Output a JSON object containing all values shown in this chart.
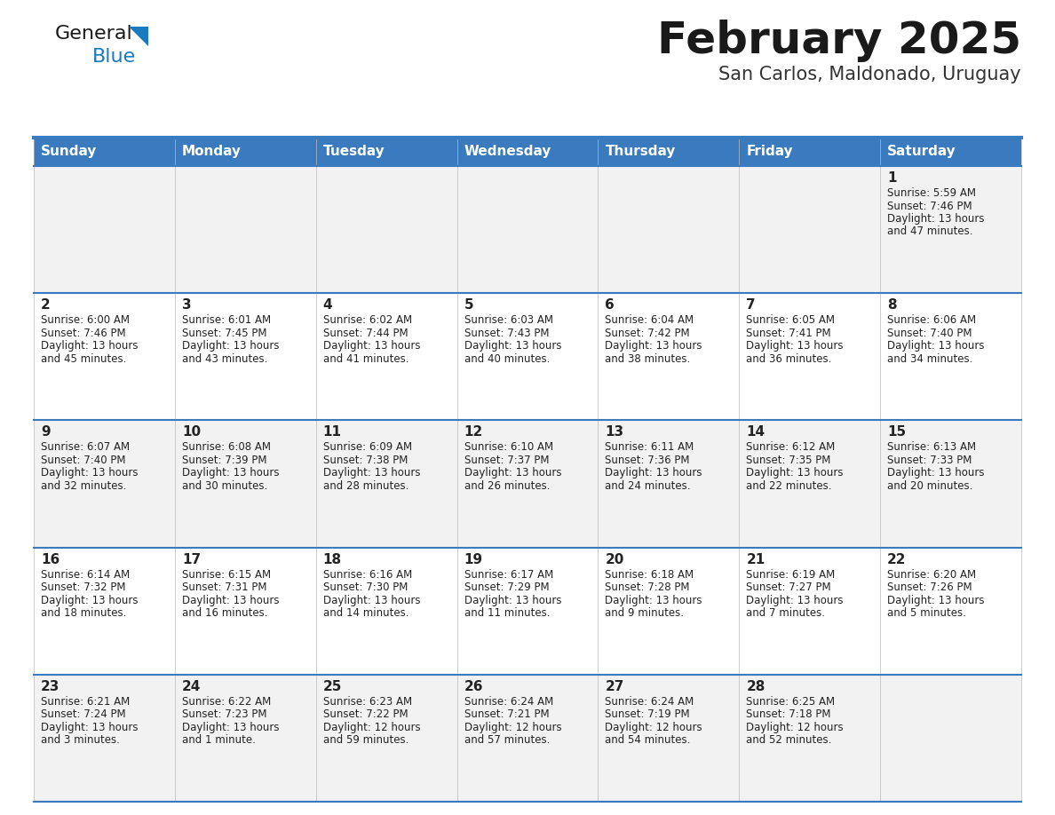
{
  "title": "February 2025",
  "subtitle": "San Carlos, Maldonado, Uruguay",
  "header_bg": "#3a7abf",
  "header_text": "#ffffff",
  "row_bg_even": "#f2f2f2",
  "row_bg_odd": "#ffffff",
  "day_names": [
    "Sunday",
    "Monday",
    "Tuesday",
    "Wednesday",
    "Thursday",
    "Friday",
    "Saturday"
  ],
  "days": [
    {
      "day": 1,
      "col": 6,
      "row": 0,
      "sunrise": "5:59 AM",
      "sunset": "7:46 PM",
      "daylight_l1": "Daylight: 13 hours",
      "daylight_l2": "and 47 minutes."
    },
    {
      "day": 2,
      "col": 0,
      "row": 1,
      "sunrise": "6:00 AM",
      "sunset": "7:46 PM",
      "daylight_l1": "Daylight: 13 hours",
      "daylight_l2": "and 45 minutes."
    },
    {
      "day": 3,
      "col": 1,
      "row": 1,
      "sunrise": "6:01 AM",
      "sunset": "7:45 PM",
      "daylight_l1": "Daylight: 13 hours",
      "daylight_l2": "and 43 minutes."
    },
    {
      "day": 4,
      "col": 2,
      "row": 1,
      "sunrise": "6:02 AM",
      "sunset": "7:44 PM",
      "daylight_l1": "Daylight: 13 hours",
      "daylight_l2": "and 41 minutes."
    },
    {
      "day": 5,
      "col": 3,
      "row": 1,
      "sunrise": "6:03 AM",
      "sunset": "7:43 PM",
      "daylight_l1": "Daylight: 13 hours",
      "daylight_l2": "and 40 minutes."
    },
    {
      "day": 6,
      "col": 4,
      "row": 1,
      "sunrise": "6:04 AM",
      "sunset": "7:42 PM",
      "daylight_l1": "Daylight: 13 hours",
      "daylight_l2": "and 38 minutes."
    },
    {
      "day": 7,
      "col": 5,
      "row": 1,
      "sunrise": "6:05 AM",
      "sunset": "7:41 PM",
      "daylight_l1": "Daylight: 13 hours",
      "daylight_l2": "and 36 minutes."
    },
    {
      "day": 8,
      "col": 6,
      "row": 1,
      "sunrise": "6:06 AM",
      "sunset": "7:40 PM",
      "daylight_l1": "Daylight: 13 hours",
      "daylight_l2": "and 34 minutes."
    },
    {
      "day": 9,
      "col": 0,
      "row": 2,
      "sunrise": "6:07 AM",
      "sunset": "7:40 PM",
      "daylight_l1": "Daylight: 13 hours",
      "daylight_l2": "and 32 minutes."
    },
    {
      "day": 10,
      "col": 1,
      "row": 2,
      "sunrise": "6:08 AM",
      "sunset": "7:39 PM",
      "daylight_l1": "Daylight: 13 hours",
      "daylight_l2": "and 30 minutes."
    },
    {
      "day": 11,
      "col": 2,
      "row": 2,
      "sunrise": "6:09 AM",
      "sunset": "7:38 PM",
      "daylight_l1": "Daylight: 13 hours",
      "daylight_l2": "and 28 minutes."
    },
    {
      "day": 12,
      "col": 3,
      "row": 2,
      "sunrise": "6:10 AM",
      "sunset": "7:37 PM",
      "daylight_l1": "Daylight: 13 hours",
      "daylight_l2": "and 26 minutes."
    },
    {
      "day": 13,
      "col": 4,
      "row": 2,
      "sunrise": "6:11 AM",
      "sunset": "7:36 PM",
      "daylight_l1": "Daylight: 13 hours",
      "daylight_l2": "and 24 minutes."
    },
    {
      "day": 14,
      "col": 5,
      "row": 2,
      "sunrise": "6:12 AM",
      "sunset": "7:35 PM",
      "daylight_l1": "Daylight: 13 hours",
      "daylight_l2": "and 22 minutes."
    },
    {
      "day": 15,
      "col": 6,
      "row": 2,
      "sunrise": "6:13 AM",
      "sunset": "7:33 PM",
      "daylight_l1": "Daylight: 13 hours",
      "daylight_l2": "and 20 minutes."
    },
    {
      "day": 16,
      "col": 0,
      "row": 3,
      "sunrise": "6:14 AM",
      "sunset": "7:32 PM",
      "daylight_l1": "Daylight: 13 hours",
      "daylight_l2": "and 18 minutes."
    },
    {
      "day": 17,
      "col": 1,
      "row": 3,
      "sunrise": "6:15 AM",
      "sunset": "7:31 PM",
      "daylight_l1": "Daylight: 13 hours",
      "daylight_l2": "and 16 minutes."
    },
    {
      "day": 18,
      "col": 2,
      "row": 3,
      "sunrise": "6:16 AM",
      "sunset": "7:30 PM",
      "daylight_l1": "Daylight: 13 hours",
      "daylight_l2": "and 14 minutes."
    },
    {
      "day": 19,
      "col": 3,
      "row": 3,
      "sunrise": "6:17 AM",
      "sunset": "7:29 PM",
      "daylight_l1": "Daylight: 13 hours",
      "daylight_l2": "and 11 minutes."
    },
    {
      "day": 20,
      "col": 4,
      "row": 3,
      "sunrise": "6:18 AM",
      "sunset": "7:28 PM",
      "daylight_l1": "Daylight: 13 hours",
      "daylight_l2": "and 9 minutes."
    },
    {
      "day": 21,
      "col": 5,
      "row": 3,
      "sunrise": "6:19 AM",
      "sunset": "7:27 PM",
      "daylight_l1": "Daylight: 13 hours",
      "daylight_l2": "and 7 minutes."
    },
    {
      "day": 22,
      "col": 6,
      "row": 3,
      "sunrise": "6:20 AM",
      "sunset": "7:26 PM",
      "daylight_l1": "Daylight: 13 hours",
      "daylight_l2": "and 5 minutes."
    },
    {
      "day": 23,
      "col": 0,
      "row": 4,
      "sunrise": "6:21 AM",
      "sunset": "7:24 PM",
      "daylight_l1": "Daylight: 13 hours",
      "daylight_l2": "and 3 minutes."
    },
    {
      "day": 24,
      "col": 1,
      "row": 4,
      "sunrise": "6:22 AM",
      "sunset": "7:23 PM",
      "daylight_l1": "Daylight: 13 hours",
      "daylight_l2": "and 1 minute."
    },
    {
      "day": 25,
      "col": 2,
      "row": 4,
      "sunrise": "6:23 AM",
      "sunset": "7:22 PM",
      "daylight_l1": "Daylight: 12 hours",
      "daylight_l2": "and 59 minutes."
    },
    {
      "day": 26,
      "col": 3,
      "row": 4,
      "sunrise": "6:24 AM",
      "sunset": "7:21 PM",
      "daylight_l1": "Daylight: 12 hours",
      "daylight_l2": "and 57 minutes."
    },
    {
      "day": 27,
      "col": 4,
      "row": 4,
      "sunrise": "6:24 AM",
      "sunset": "7:19 PM",
      "daylight_l1": "Daylight: 12 hours",
      "daylight_l2": "and 54 minutes."
    },
    {
      "day": 28,
      "col": 5,
      "row": 4,
      "sunrise": "6:25 AM",
      "sunset": "7:18 PM",
      "daylight_l1": "Daylight: 12 hours",
      "daylight_l2": "and 52 minutes."
    }
  ],
  "num_rows": 5,
  "logo_color_general": "#1a1a1a",
  "logo_color_blue": "#1a7abf",
  "logo_triangle_color": "#1a7abf",
  "title_color": "#1a1a1a",
  "subtitle_color": "#333333",
  "cell_text_color": "#222222",
  "divider_color": "#3a7abf",
  "cell_border_color": "#bbbbbb",
  "title_fontsize": 36,
  "subtitle_fontsize": 15,
  "dayname_fontsize": 11,
  "daynum_fontsize": 11,
  "cell_text_fontsize": 8.5
}
